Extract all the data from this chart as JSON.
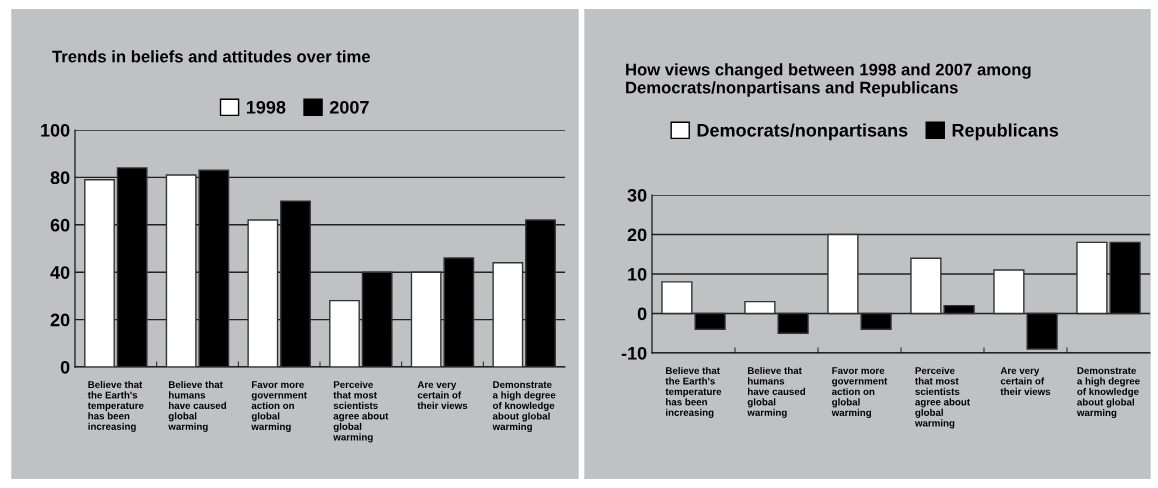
{
  "chart_data": [
    {
      "type": "bar",
      "title": "Trends in beliefs and attitudes over time",
      "categories": [
        "Believe that\nthe Earth's\ntemperature\nhas been\nincreasing",
        "Believe that\nhumans\nhave caused\nglobal\nwarming",
        "Favor more\ngovernment\naction on\nglobal\nwarming",
        "Perceive\nthat most\nscientists\nagree about\nglobal\nwarming",
        "Are very\ncertain of\ntheir views",
        "Demonstrate\na high degree\nof knowledge\nabout global\nwarming"
      ],
      "series": [
        {
          "name": "1998",
          "color": "#ffffff",
          "values": [
            79,
            81,
            62,
            28,
            40,
            44
          ]
        },
        {
          "name": "2007",
          "color": "#000000",
          "values": [
            84,
            83,
            70,
            40,
            46,
            62
          ]
        }
      ],
      "ylim": [
        0,
        100
      ],
      "yticks": [
        0,
        20,
        40,
        60,
        80,
        100
      ],
      "grid": "y",
      "legend": "top"
    },
    {
      "type": "bar",
      "title": "How views changed between 1998 and 2007 among\nDemocrats/nonpartisans and Republicans",
      "categories": [
        "Believe that\nthe Earth's\ntemperature\nhas been\nincreasing",
        "Believe that\nhumans\nhave caused\nglobal\nwarming",
        "Favor more\ngovernment\naction on\nglobal\nwarming",
        "Perceive\nthat most\nscientists\nagree about\nglobal\nwarming",
        "Are very\ncertain of\ntheir views",
        "Demonstrate\na high degree\nof knowledge\nabout global\nwarming"
      ],
      "series": [
        {
          "name": "Democrats/nonpartisans",
          "color": "#ffffff",
          "values": [
            8,
            3,
            20,
            14,
            11,
            18
          ]
        },
        {
          "name": "Republicans",
          "color": "#000000",
          "values": [
            -4,
            -5,
            -4,
            2,
            -9,
            18
          ]
        }
      ],
      "ylim": [
        -10,
        30
      ],
      "yticks": [
        -10,
        0,
        10,
        20,
        30
      ],
      "grid": "y",
      "legend": "top"
    }
  ]
}
